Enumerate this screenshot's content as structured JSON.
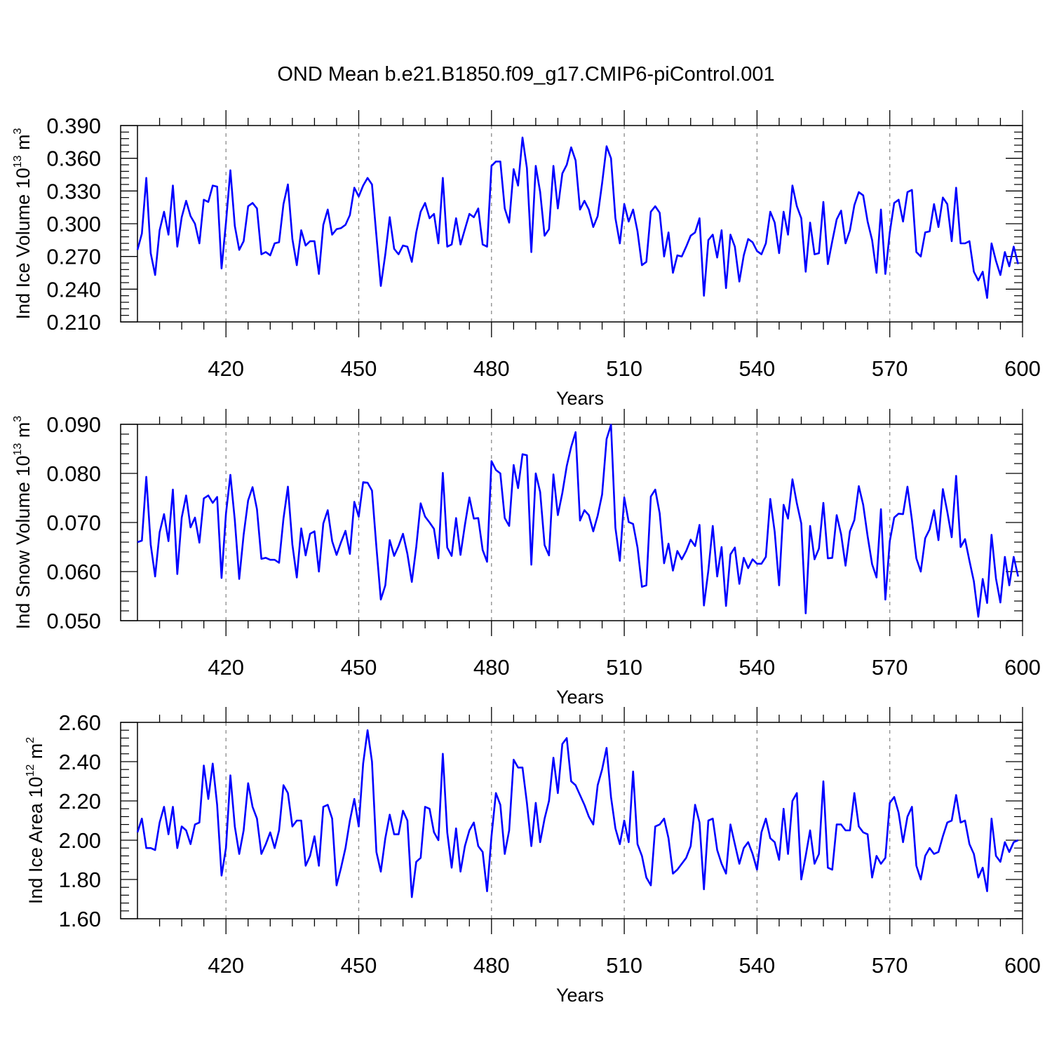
{
  "title": "OND Mean b.e21.B1850.f09_g17.CMIP6-piControl.001",
  "colors": {
    "line": "#0000ff",
    "axis": "#000000",
    "grid": "#808080"
  },
  "chart_data": [
    {
      "type": "line",
      "name": "ice-volume",
      "ylabel_main": "Ind Ice Volume 10",
      "ylabel_exp": "13",
      "ylabel_unit": " m",
      "ylabel_unit_exp": "3",
      "xlabel": "Years",
      "xlim": [
        400,
        600
      ],
      "ylim": [
        0.21,
        0.39
      ],
      "x_ticks": [
        420,
        450,
        480,
        510,
        540,
        570,
        600
      ],
      "x_tick_labels": [
        "420",
        "450",
        "480",
        "510",
        "540",
        "570",
        "600"
      ],
      "y_ticks": [
        0.21,
        0.24,
        0.27,
        0.3,
        0.33,
        0.36,
        0.39
      ],
      "y_tick_labels": [
        "0.210",
        "0.240",
        "0.270",
        "0.300",
        "0.330",
        "0.360",
        "0.390"
      ],
      "x_start": 400,
      "values": [
        0.276,
        0.291,
        0.342,
        0.273,
        0.253,
        0.294,
        0.311,
        0.29,
        0.335,
        0.279,
        0.306,
        0.321,
        0.307,
        0.3,
        0.282,
        0.322,
        0.32,
        0.335,
        0.334,
        0.259,
        0.301,
        0.349,
        0.298,
        0.276,
        0.284,
        0.316,
        0.319,
        0.314,
        0.272,
        0.274,
        0.271,
        0.282,
        0.283,
        0.318,
        0.336,
        0.286,
        0.262,
        0.294,
        0.28,
        0.284,
        0.284,
        0.254,
        0.299,
        0.313,
        0.29,
        0.295,
        0.296,
        0.299,
        0.308,
        0.333,
        0.325,
        0.335,
        0.342,
        0.336,
        0.289,
        0.243,
        0.272,
        0.306,
        0.277,
        0.272,
        0.28,
        0.279,
        0.265,
        0.292,
        0.311,
        0.319,
        0.305,
        0.309,
        0.282,
        0.342,
        0.279,
        0.281,
        0.305,
        0.281,
        0.295,
        0.309,
        0.306,
        0.314,
        0.281,
        0.279,
        0.353,
        0.357,
        0.357,
        0.314,
        0.301,
        0.35,
        0.335,
        0.379,
        0.351,
        0.274,
        0.353,
        0.329,
        0.289,
        0.295,
        0.353,
        0.314,
        0.346,
        0.354,
        0.37,
        0.358,
        0.313,
        0.321,
        0.313,
        0.297,
        0.307,
        0.337,
        0.371,
        0.36,
        0.305,
        0.282,
        0.318,
        0.302,
        0.313,
        0.293,
        0.262,
        0.265,
        0.311,
        0.316,
        0.31,
        0.27,
        0.292,
        0.255,
        0.271,
        0.27,
        0.279,
        0.289,
        0.292,
        0.305,
        0.234,
        0.285,
        0.29,
        0.269,
        0.294,
        0.241,
        0.29,
        0.279,
        0.247,
        0.271,
        0.286,
        0.283,
        0.275,
        0.272,
        0.282,
        0.311,
        0.301,
        0.273,
        0.311,
        0.29,
        0.335,
        0.316,
        0.305,
        0.256,
        0.301,
        0.272,
        0.273,
        0.32,
        0.263,
        0.284,
        0.304,
        0.312,
        0.282,
        0.294,
        0.317,
        0.329,
        0.326,
        0.302,
        0.285,
        0.255,
        0.313,
        0.254,
        0.292,
        0.319,
        0.322,
        0.302,
        0.329,
        0.331,
        0.274,
        0.27,
        0.292,
        0.293,
        0.318,
        0.297,
        0.324,
        0.318,
        0.284,
        0.333,
        0.282,
        0.282,
        0.284,
        0.256,
        0.248,
        0.256,
        0.232,
        0.282,
        0.266,
        0.253,
        0.274,
        0.261,
        0.279,
        0.263
      ]
    },
    {
      "type": "line",
      "name": "snow-volume",
      "ylabel_main": "Ind Snow Volume 10",
      "ylabel_exp": "13",
      "ylabel_unit": " m",
      "ylabel_unit_exp": "3",
      "xlabel": "Years",
      "xlim": [
        400,
        600
      ],
      "ylim": [
        0.05,
        0.09
      ],
      "x_ticks": [
        420,
        450,
        480,
        510,
        540,
        570,
        600
      ],
      "x_tick_labels": [
        "420",
        "450",
        "480",
        "510",
        "540",
        "570",
        "600"
      ],
      "y_ticks": [
        0.05,
        0.06,
        0.07,
        0.08,
        0.09
      ],
      "y_tick_labels": [
        "0.050",
        "0.060",
        "0.070",
        "0.080",
        "0.090"
      ],
      "x_start": 400,
      "values": [
        0.066,
        0.0663,
        0.0793,
        0.0655,
        0.059,
        0.068,
        0.0717,
        0.0662,
        0.0767,
        0.0595,
        0.071,
        0.0755,
        0.069,
        0.071,
        0.0659,
        0.0749,
        0.0755,
        0.074,
        0.0752,
        0.0587,
        0.0718,
        0.0797,
        0.0705,
        0.0585,
        0.0675,
        0.0745,
        0.0772,
        0.0727,
        0.0626,
        0.0628,
        0.0624,
        0.0624,
        0.0618,
        0.0708,
        0.0773,
        0.0655,
        0.0588,
        0.0688,
        0.0633,
        0.0677,
        0.0682,
        0.06,
        0.0698,
        0.0725,
        0.0662,
        0.0634,
        0.066,
        0.0683,
        0.0636,
        0.0742,
        0.0712,
        0.0782,
        0.0781,
        0.0765,
        0.065,
        0.0543,
        0.0572,
        0.0664,
        0.0632,
        0.0652,
        0.0677,
        0.0636,
        0.0579,
        0.065,
        0.0739,
        0.0712,
        0.07,
        0.0687,
        0.0627,
        0.0801,
        0.0649,
        0.0632,
        0.0709,
        0.0634,
        0.0695,
        0.0751,
        0.0708,
        0.0709,
        0.0644,
        0.062,
        0.0825,
        0.0807,
        0.08,
        0.0709,
        0.0693,
        0.0817,
        0.077,
        0.0839,
        0.0837,
        0.0614,
        0.08,
        0.0762,
        0.0654,
        0.0633,
        0.0798,
        0.0715,
        0.076,
        0.0815,
        0.0854,
        0.0884,
        0.0704,
        0.0725,
        0.0715,
        0.0682,
        0.0714,
        0.0757,
        0.087,
        0.0899,
        0.0689,
        0.0622,
        0.0751,
        0.0701,
        0.0697,
        0.0649,
        0.0569,
        0.0572,
        0.0753,
        0.0767,
        0.0719,
        0.0617,
        0.0657,
        0.0602,
        0.0642,
        0.0625,
        0.0642,
        0.0665,
        0.0652,
        0.0695,
        0.0531,
        0.0602,
        0.0693,
        0.059,
        0.065,
        0.053,
        0.0635,
        0.0649,
        0.0575,
        0.0628,
        0.0607,
        0.0625,
        0.0616,
        0.0616,
        0.063,
        0.0748,
        0.0681,
        0.0572,
        0.0736,
        0.0708,
        0.0788,
        0.0739,
        0.0698,
        0.0515,
        0.0693,
        0.0625,
        0.0647,
        0.074,
        0.0627,
        0.0628,
        0.0715,
        0.0676,
        0.0612,
        0.0682,
        0.0705,
        0.0774,
        0.0736,
        0.0672,
        0.0615,
        0.0588,
        0.0727,
        0.0543,
        0.0662,
        0.071,
        0.0718,
        0.0717,
        0.0773,
        0.0705,
        0.0627,
        0.06,
        0.0668,
        0.0686,
        0.0725,
        0.0664,
        0.0768,
        0.0722,
        0.067,
        0.0795,
        0.065,
        0.0666,
        0.0622,
        0.058,
        0.0508,
        0.0585,
        0.0536,
        0.0675,
        0.0586,
        0.0537,
        0.063,
        0.0572,
        0.063,
        0.059
      ]
    },
    {
      "type": "line",
      "name": "ice-area",
      "ylabel_main": "Ind Ice Area 10",
      "ylabel_exp": "12",
      "ylabel_unit": " m",
      "ylabel_unit_exp": "2",
      "xlabel": "Years",
      "xlim": [
        400,
        600
      ],
      "ylim": [
        1.6,
        2.6
      ],
      "x_ticks": [
        420,
        450,
        480,
        510,
        540,
        570,
        600
      ],
      "x_tick_labels": [
        "420",
        "450",
        "480",
        "510",
        "540",
        "570",
        "600"
      ],
      "y_ticks": [
        1.6,
        1.8,
        2.0,
        2.2,
        2.4,
        2.6
      ],
      "y_tick_labels": [
        "1.60",
        "1.80",
        "2.00",
        "2.20",
        "2.40",
        "2.60"
      ],
      "x_start": 400,
      "values": [
        2.04,
        2.11,
        1.96,
        1.96,
        1.95,
        2.09,
        2.17,
        2.03,
        2.17,
        1.96,
        2.07,
        2.05,
        1.98,
        2.08,
        2.09,
        2.38,
        2.21,
        2.39,
        2.18,
        1.82,
        1.96,
        2.33,
        2.07,
        1.93,
        2.05,
        2.29,
        2.17,
        2.11,
        1.93,
        1.98,
        2.04,
        1.96,
        2.05,
        2.28,
        2.24,
        2.07,
        2.1,
        2.1,
        1.87,
        1.92,
        2.02,
        1.87,
        2.17,
        2.18,
        2.11,
        1.77,
        1.86,
        1.96,
        2.1,
        2.21,
        2.07,
        2.39,
        2.56,
        2.4,
        1.94,
        1.84,
        2.01,
        2.13,
        2.03,
        2.03,
        2.15,
        2.1,
        1.71,
        1.89,
        1.91,
        2.17,
        2.16,
        2.04,
        2.0,
        2.44,
        2.04,
        1.86,
        2.06,
        1.84,
        1.97,
        2.05,
        2.09,
        1.97,
        1.94,
        1.74,
        2.02,
        2.24,
        2.18,
        1.93,
        2.05,
        2.41,
        2.37,
        2.37,
        2.19,
        1.97,
        2.19,
        1.99,
        2.11,
        2.2,
        2.42,
        2.24,
        2.49,
        2.52,
        2.3,
        2.28,
        2.23,
        2.18,
        2.12,
        2.08,
        2.28,
        2.36,
        2.47,
        2.22,
        2.06,
        1.98,
        2.1,
        1.99,
        2.35,
        1.98,
        1.92,
        1.81,
        1.77,
        2.07,
        2.08,
        2.11,
        2.01,
        1.83,
        1.85,
        1.88,
        1.91,
        1.97,
        2.18,
        2.09,
        1.75,
        2.1,
        2.11,
        1.95,
        1.88,
        1.83,
        2.08,
        1.98,
        1.88,
        1.96,
        1.99,
        1.93,
        1.85,
        2.04,
        2.11,
        2.01,
        1.99,
        1.9,
        2.16,
        1.93,
        2.2,
        2.24,
        1.8,
        1.92,
        2.05,
        1.88,
        1.93,
        2.3,
        1.86,
        1.85,
        2.08,
        2.08,
        2.05,
        2.05,
        2.24,
        2.07,
        2.04,
        2.03,
        1.81,
        1.92,
        1.88,
        1.91,
        2.19,
        2.22,
        2.14,
        1.99,
        2.12,
        2.17,
        1.87,
        1.8,
        1.92,
        1.96,
        1.93,
        1.94,
        2.02,
        2.09,
        2.1,
        2.23,
        2.09,
        2.1,
        1.98,
        1.93,
        1.81,
        1.86,
        1.74,
        2.11,
        1.92,
        1.89,
        1.99,
        1.94,
        1.99,
        2.0
      ]
    }
  ]
}
